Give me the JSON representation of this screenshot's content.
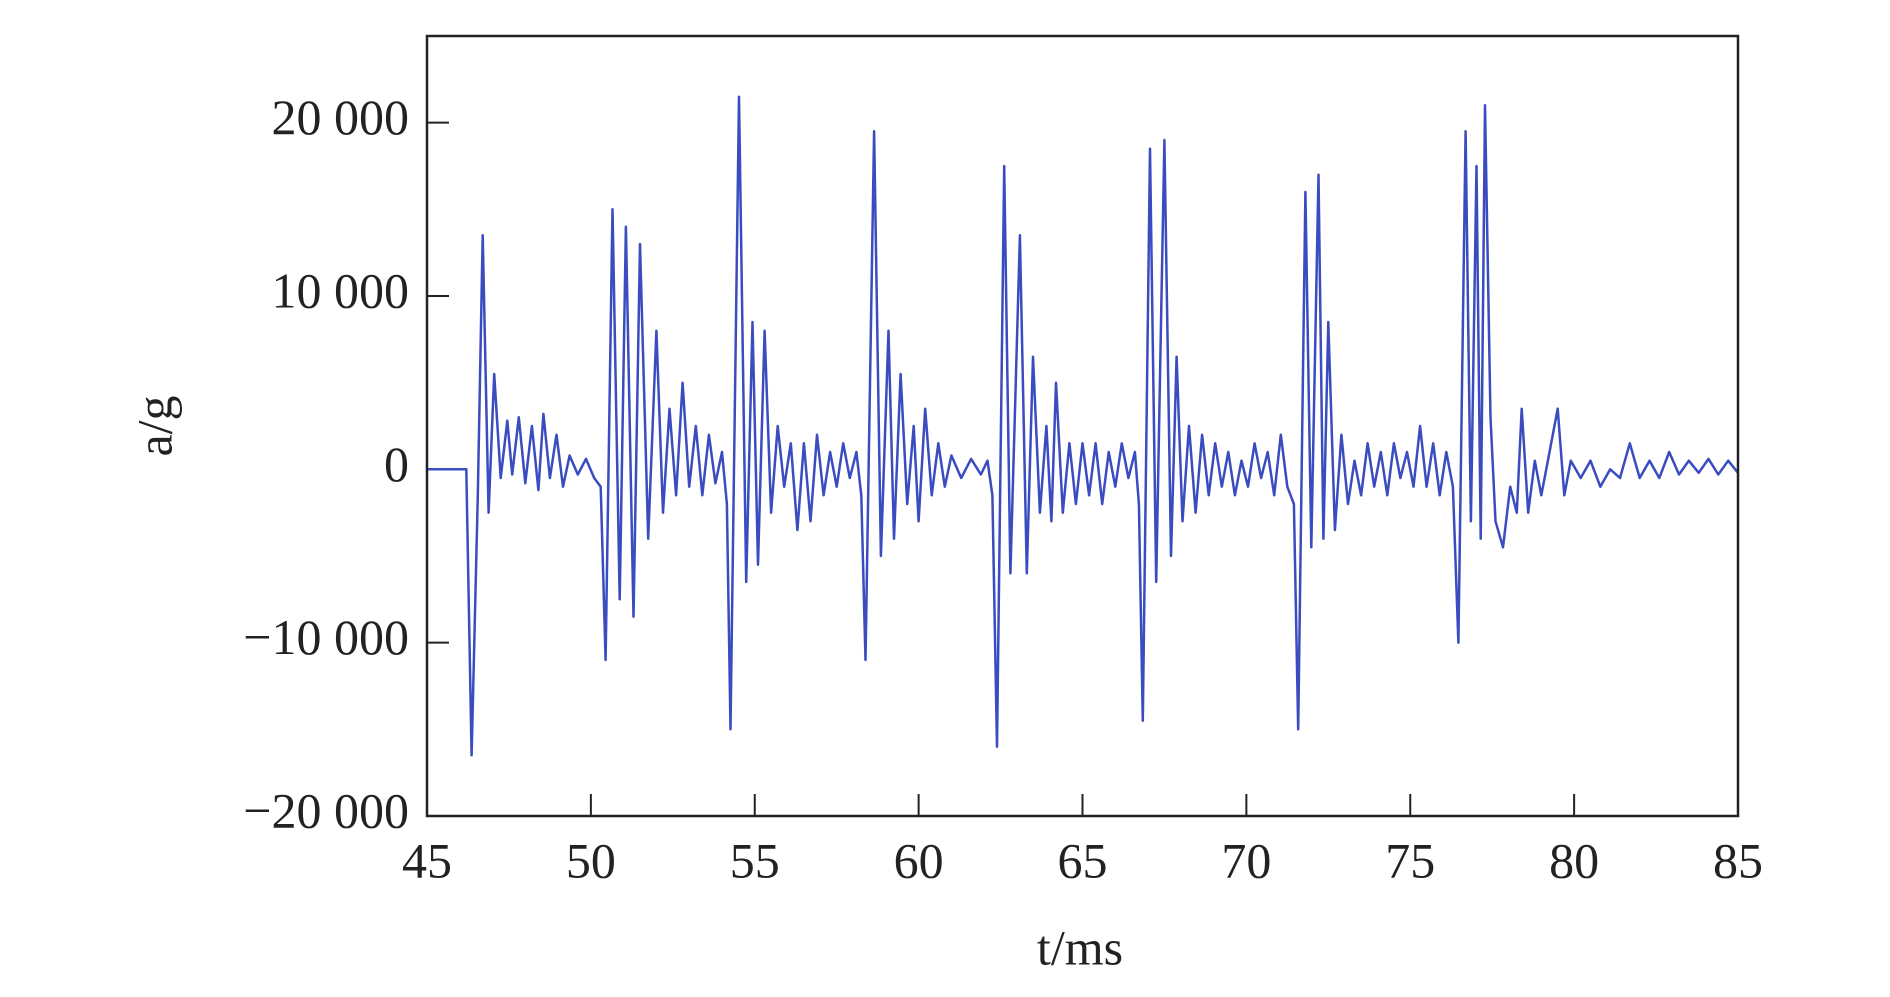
{
  "chart_data": {
    "type": "line",
    "xlabel": "t/ms",
    "ylabel": "a/g",
    "xlim": [
      45,
      85
    ],
    "xticks": [
      45,
      50,
      55,
      60,
      65,
      70,
      75,
      80,
      85
    ],
    "ylim": [
      -20000,
      25000
    ],
    "yticks": [
      {
        "value": -20000,
        "label": "−20 000"
      },
      {
        "value": -10000,
        "label": "−10 000"
      },
      0,
      {
        "value": 10000,
        "label": "10 000"
      },
      {
        "value": 20000,
        "label": "20 000"
      }
    ],
    "x": [
      45,
      46.2,
      46.36,
      46.55,
      46.7,
      46.88,
      47.05,
      47.25,
      47.45,
      47.6,
      47.8,
      48.0,
      48.2,
      48.4,
      48.55,
      48.75,
      48.95,
      49.15,
      49.35,
      49.6,
      49.85,
      50.1,
      50.3,
      50.45,
      50.66,
      50.88,
      51.07,
      51.3,
      51.5,
      51.75,
      52.0,
      52.2,
      52.4,
      52.6,
      52.8,
      53.0,
      53.2,
      53.4,
      53.6,
      53.8,
      54.0,
      54.15,
      54.26,
      54.52,
      54.74,
      54.93,
      55.1,
      55.3,
      55.5,
      55.7,
      55.9,
      56.1,
      56.3,
      56.5,
      56.7,
      56.9,
      57.1,
      57.3,
      57.5,
      57.7,
      57.9,
      58.1,
      58.25,
      58.38,
      58.64,
      58.85,
      59.08,
      59.25,
      59.45,
      59.65,
      59.85,
      60.0,
      60.2,
      60.4,
      60.6,
      60.8,
      61.0,
      61.3,
      61.6,
      61.9,
      62.1,
      62.25,
      62.39,
      62.61,
      62.8,
      63.09,
      63.3,
      63.49,
      63.7,
      63.9,
      64.05,
      64.19,
      64.4,
      64.6,
      64.8,
      65.0,
      65.2,
      65.4,
      65.6,
      65.8,
      66.0,
      66.2,
      66.4,
      66.6,
      66.72,
      66.84,
      67.06,
      67.25,
      67.5,
      67.7,
      67.87,
      68.05,
      68.25,
      68.45,
      68.65,
      68.85,
      69.05,
      69.25,
      69.45,
      69.65,
      69.85,
      70.05,
      70.25,
      70.45,
      70.65,
      70.85,
      71.05,
      71.25,
      71.45,
      71.58,
      71.8,
      71.98,
      72.2,
      72.35,
      72.5,
      72.7,
      72.9,
      73.1,
      73.3,
      73.5,
      73.7,
      73.9,
      74.1,
      74.3,
      74.5,
      74.7,
      74.9,
      75.1,
      75.3,
      75.5,
      75.7,
      75.9,
      76.1,
      76.3,
      76.47,
      76.69,
      76.85,
      77.02,
      77.15,
      77.28,
      77.45,
      77.6,
      77.83,
      78.05,
      78.25,
      78.4,
      78.6,
      78.8,
      79.0,
      79.2,
      79.5,
      79.7,
      79.9,
      80.2,
      80.5,
      80.8,
      81.1,
      81.4,
      81.7,
      82.0,
      82.3,
      82.6,
      82.9,
      83.2,
      83.5,
      83.8,
      84.1,
      84.4,
      84.7,
      85
    ],
    "series": [
      {
        "color": "#3a4cc0",
        "values": [
          0,
          0,
          -16500,
          -1500,
          13500,
          -2500,
          5500,
          -500,
          2800,
          -300,
          3000,
          -800,
          2500,
          -1200,
          3200,
          -500,
          2000,
          -1000,
          800,
          -300,
          600,
          -500,
          -1000,
          -11000,
          15000,
          -7500,
          14000,
          -8500,
          13000,
          -4000,
          8000,
          -2500,
          3500,
          -1500,
          5000,
          -1000,
          2500,
          -1500,
          2000,
          -800,
          1000,
          -2000,
          -15000,
          21500,
          -6500,
          8500,
          -5500,
          8000,
          -2500,
          2500,
          -1000,
          1500,
          -3500,
          1500,
          -3000,
          2000,
          -1500,
          1000,
          -1000,
          1500,
          -500,
          1000,
          -1500,
          -11000,
          19500,
          -5000,
          8000,
          -4000,
          5500,
          -2000,
          2500,
          -3000,
          3500,
          -1500,
          1500,
          -1000,
          800,
          -500,
          600,
          -300,
          500,
          -1500,
          -16000,
          17500,
          -6000,
          13500,
          -6000,
          6500,
          -2500,
          2500,
          -3000,
          5000,
          -2500,
          1500,
          -2000,
          1500,
          -1500,
          1500,
          -2000,
          1000,
          -1000,
          1500,
          -500,
          1000,
          -2000,
          -14500,
          18500,
          -6500,
          19000,
          -5000,
          6500,
          -3000,
          2500,
          -2500,
          2000,
          -1500,
          1500,
          -1000,
          1000,
          -1500,
          500,
          -1000,
          1500,
          -500,
          1000,
          -1500,
          2000,
          -1000,
          -2000,
          -15000,
          16000,
          -4500,
          17000,
          -4000,
          8500,
          -3500,
          2000,
          -2000,
          500,
          -1500,
          1500,
          -1000,
          1000,
          -1500,
          1500,
          -500,
          1000,
          -1000,
          2500,
          -1000,
          1500,
          -1500,
          1000,
          -1000,
          -10000,
          19500,
          -3000,
          17500,
          -4000,
          21000,
          3000,
          -3000,
          -4500,
          -1000,
          -2500,
          3500,
          -2500,
          500,
          -1500,
          500,
          3500,
          -1500,
          500,
          -500,
          500,
          -1000,
          0,
          -500,
          1500,
          -500,
          500,
          -500,
          1000,
          -300,
          500,
          -200,
          600,
          -300,
          500,
          -200
        ]
      }
    ]
  }
}
